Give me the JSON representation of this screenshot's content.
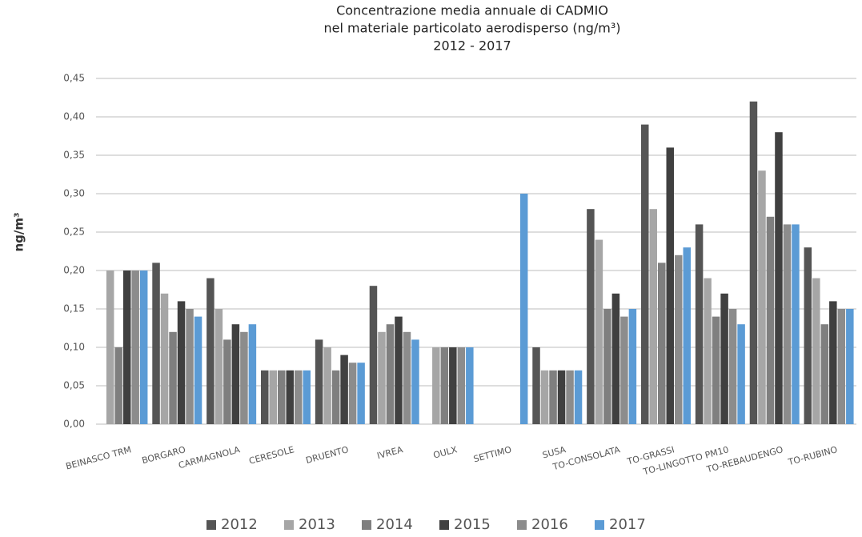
{
  "chart_data": {
    "type": "bar",
    "title": [
      "Concentrazione media annuale di CADMIO",
      "nel materiale particolato aerodisperso (ng/m³)",
      "2012 - 2017"
    ],
    "y_label": "ng/m³",
    "categories": [
      "BEINASCO TRM",
      "BORGARO",
      "CARMAGNOLA",
      "CERESOLE",
      "DRUENTO",
      "IVREA",
      "OULX",
      "SETTIMO",
      "SUSA",
      "TO-CONSOLATA",
      "TO-GRASSI",
      "TO-LINGOTTO  PM10",
      "TO-REBAUDENGO",
      "TO-RUBINO"
    ],
    "series": [
      {
        "name": "2012",
        "color": "#555555",
        "values": [
          null,
          0.21,
          0.19,
          0.07,
          0.11,
          0.18,
          null,
          null,
          0.1,
          0.28,
          0.39,
          0.26,
          0.42,
          0.23
        ]
      },
      {
        "name": "2013",
        "color": "#a6a6a6",
        "values": [
          0.2,
          0.17,
          0.15,
          0.07,
          0.1,
          0.12,
          0.1,
          null,
          0.07,
          0.24,
          0.28,
          0.19,
          0.33,
          0.19
        ]
      },
      {
        "name": "2014",
        "color": "#7f7f7f",
        "values": [
          0.1,
          0.12,
          0.11,
          0.07,
          0.07,
          0.13,
          0.1,
          null,
          0.07,
          0.15,
          0.21,
          0.14,
          0.27,
          0.13
        ]
      },
      {
        "name": "2015",
        "color": "#404040",
        "values": [
          0.2,
          0.16,
          0.13,
          0.07,
          0.09,
          0.14,
          0.1,
          null,
          0.07,
          0.17,
          0.36,
          0.17,
          0.38,
          0.16
        ]
      },
      {
        "name": "2016",
        "color": "#8c8c8c",
        "values": [
          0.2,
          0.15,
          0.12,
          0.07,
          0.08,
          0.12,
          0.1,
          null,
          0.07,
          0.14,
          0.22,
          0.15,
          0.26,
          0.15
        ]
      },
      {
        "name": "2017",
        "color": "#5b9bd5",
        "values": [
          0.2,
          0.14,
          0.13,
          0.07,
          0.08,
          0.11,
          0.1,
          0.3,
          0.07,
          0.15,
          0.23,
          0.13,
          0.26,
          0.15
        ]
      }
    ],
    "ylim": [
      0,
      0.45
    ],
    "yticks": [
      {
        "value": 0,
        "label": "0,00"
      },
      {
        "value": 0.05,
        "label": "0,05"
      },
      {
        "value": 0.1,
        "label": "0,10"
      },
      {
        "value": 0.15,
        "label": "0,15"
      },
      {
        "value": 0.2,
        "label": "0,20"
      },
      {
        "value": 0.25,
        "label": "0,25"
      },
      {
        "value": 0.3,
        "label": "0,30"
      },
      {
        "value": 0.35,
        "label": "0,35"
      },
      {
        "value": 0.4,
        "label": "0,40"
      },
      {
        "value": 0.45,
        "label": "0,45"
      }
    ],
    "grid": true,
    "legend": "bottom"
  }
}
